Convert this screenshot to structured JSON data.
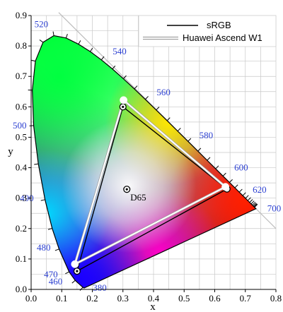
{
  "chart_data": {
    "type": "scatter",
    "title": "",
    "xlabel": "x",
    "ylabel": "y",
    "xlim": [
      0.0,
      0.8
    ],
    "ylim": [
      0.0,
      0.9
    ],
    "x_ticks": [
      "0.0",
      "0.1",
      "0.2",
      "0.3",
      "0.4",
      "0.5",
      "0.6",
      "0.7",
      "0.8"
    ],
    "y_ticks": [
      "0.0",
      "0.1",
      "0.2",
      "0.3",
      "0.4",
      "0.5",
      "0.6",
      "0.7",
      "0.8",
      "0.9"
    ],
    "grid": true,
    "legend_position": "top-right",
    "locus": [
      [
        0.1741,
        0.005
      ],
      [
        0.1738,
        0.0049
      ],
      [
        0.1733,
        0.0048
      ],
      [
        0.1726,
        0.0048
      ],
      [
        0.1714,
        0.0051
      ],
      [
        0.1689,
        0.0069
      ],
      [
        0.144,
        0.0297
      ],
      [
        0.1241,
        0.0578
      ],
      [
        0.0913,
        0.1327
      ],
      [
        0.0687,
        0.2007
      ],
      [
        0.0454,
        0.295
      ],
      [
        0.0235,
        0.4127
      ],
      [
        0.0082,
        0.5384
      ],
      [
        0.0039,
        0.6548
      ],
      [
        0.0139,
        0.7502
      ],
      [
        0.0389,
        0.812
      ],
      [
        0.0743,
        0.8338
      ],
      [
        0.1142,
        0.8262
      ],
      [
        0.1547,
        0.8059
      ],
      [
        0.1929,
        0.7816
      ],
      [
        0.2296,
        0.7543
      ],
      [
        0.2658,
        0.7243
      ],
      [
        0.3016,
        0.6923
      ],
      [
        0.3373,
        0.6589
      ],
      [
        0.3731,
        0.6245
      ],
      [
        0.4087,
        0.5896
      ],
      [
        0.4441,
        0.5547
      ],
      [
        0.4788,
        0.5202
      ],
      [
        0.5125,
        0.4866
      ],
      [
        0.5448,
        0.4544
      ],
      [
        0.5752,
        0.4242
      ],
      [
        0.6029,
        0.3965
      ],
      [
        0.627,
        0.3725
      ],
      [
        0.6482,
        0.3514
      ],
      [
        0.6658,
        0.334
      ],
      [
        0.6801,
        0.3197
      ],
      [
        0.6915,
        0.3083
      ],
      [
        0.7006,
        0.2993
      ],
      [
        0.7079,
        0.292
      ],
      [
        0.714,
        0.2859
      ],
      [
        0.719,
        0.2809
      ],
      [
        0.723,
        0.277
      ],
      [
        0.726,
        0.274
      ],
      [
        0.7283,
        0.2717
      ],
      [
        0.73,
        0.27
      ],
      [
        0.7347,
        0.2653
      ]
    ],
    "wavelength_labels": [
      {
        "label": "380",
        "nm": 380,
        "x": 0.1741,
        "y": 0.005
      },
      {
        "label": "460",
        "nm": 460,
        "x": 0.144,
        "y": 0.0297
      },
      {
        "label": "470",
        "nm": 470,
        "x": 0.1241,
        "y": 0.0578
      },
      {
        "label": "480",
        "nm": 480,
        "x": 0.0913,
        "y": 0.1327
      },
      {
        "label": "490",
        "nm": 490,
        "x": 0.0454,
        "y": 0.295
      },
      {
        "label": "500",
        "nm": 500,
        "x": 0.0082,
        "y": 0.5384
      },
      {
        "label": "520",
        "nm": 520,
        "x": 0.0743,
        "y": 0.8338
      },
      {
        "label": "540",
        "nm": 540,
        "x": 0.2296,
        "y": 0.7543
      },
      {
        "label": "560",
        "nm": 560,
        "x": 0.3731,
        "y": 0.6245
      },
      {
        "label": "580",
        "nm": 580,
        "x": 0.5125,
        "y": 0.4866
      },
      {
        "label": "600",
        "nm": 600,
        "x": 0.627,
        "y": 0.3725
      },
      {
        "label": "620",
        "nm": 620,
        "x": 0.6915,
        "y": 0.3083
      },
      {
        "label": "700",
        "nm": 700,
        "x": 0.7347,
        "y": 0.2653
      }
    ],
    "series": [
      {
        "name": "sRGB",
        "color": "#000000",
        "style": "solid",
        "points": [
          [
            0.64,
            0.33
          ],
          [
            0.3,
            0.6
          ],
          [
            0.15,
            0.06
          ]
        ]
      },
      {
        "name": "Huawei Ascend W1",
        "color": "#ffffff",
        "style": "double",
        "points": [
          [
            0.635,
            0.337
          ],
          [
            0.302,
            0.622
          ],
          [
            0.143,
            0.083
          ]
        ]
      }
    ],
    "white_point": {
      "label": "D65",
      "x": 0.3127,
      "y": 0.329
    },
    "colors": {
      "diagram_red": "#ff0000",
      "diagram_green": "#00ff30",
      "diagram_blue": "#2200ff",
      "wavelength_label": "#2b3fd1",
      "grid": "#c8c8c8"
    }
  }
}
